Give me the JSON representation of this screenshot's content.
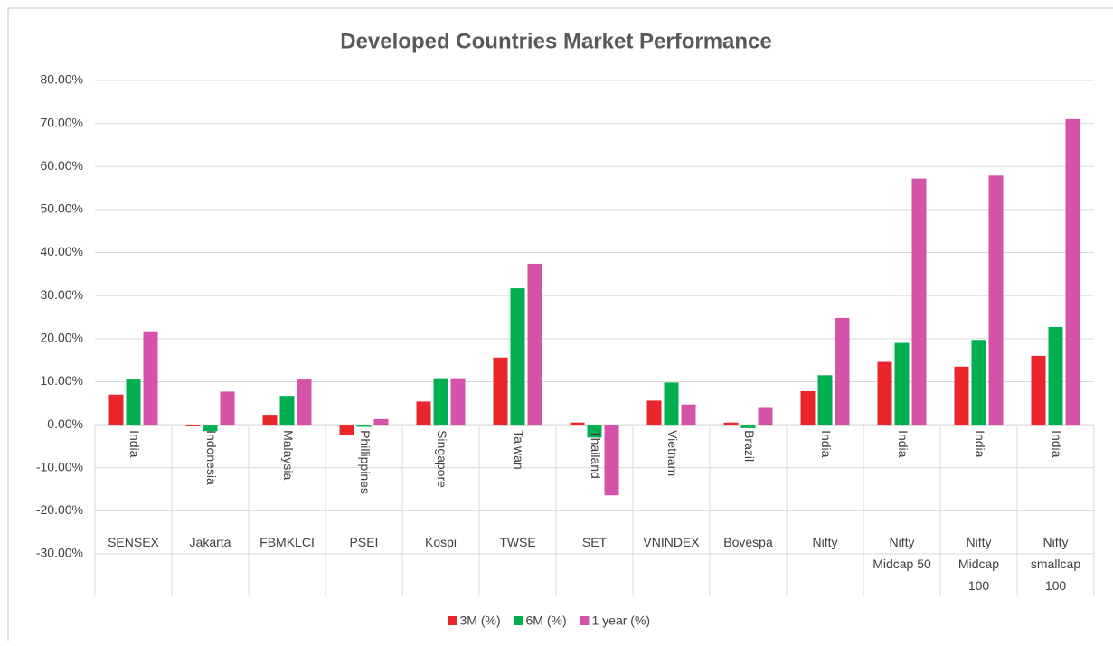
{
  "chart_data": {
    "type": "bar",
    "title": "Developed Countries Market Performance",
    "categories": [
      "SENSEX",
      "Jakarta",
      "FBMKLCI",
      "PSEI",
      "Kospi",
      "TWSE",
      "SET",
      "VNINDEX",
      "Bovespa",
      "Nifty",
      "Nifty Midcap 50",
      "Nifty Midcap 100",
      "Nifty smallcap 100"
    ],
    "category_groups": [
      "India",
      "Indonesia",
      "Malaysia",
      "Phillippines",
      "Singapore",
      "Taiwan",
      "Thailand",
      "Vietnam",
      "Brazil",
      "India",
      "India",
      "India",
      "India"
    ],
    "series": [
      {
        "name": "3M (%)",
        "color": "#e8262b",
        "values": [
          7.0,
          -0.4,
          2.3,
          -2.5,
          5.4,
          15.6,
          0.5,
          5.6,
          0.5,
          7.8,
          14.6,
          13.5,
          16.0
        ]
      },
      {
        "name": "6M (%)",
        "color": "#00b050",
        "values": [
          10.5,
          -1.5,
          6.7,
          -0.5,
          10.8,
          31.7,
          -3.0,
          9.8,
          -0.8,
          11.5,
          19.0,
          19.7,
          22.7
        ]
      },
      {
        "name": "1 year (%)",
        "color": "#d452a8",
        "values": [
          21.7,
          7.7,
          10.5,
          1.3,
          10.8,
          37.4,
          -16.4,
          4.7,
          3.9,
          24.8,
          57.2,
          57.9,
          71.0
        ]
      }
    ],
    "ylim": [
      -30,
      80
    ],
    "yticks": [
      {
        "value": -30,
        "label": "-30.00%"
      },
      {
        "value": -20,
        "label": "-20.00%"
      },
      {
        "value": -10,
        "label": "-10.00%"
      },
      {
        "value": 0,
        "label": "0.00%"
      },
      {
        "value": 10,
        "label": "10.00%"
      },
      {
        "value": 20,
        "label": "20.00%"
      },
      {
        "value": 30,
        "label": "30.00%"
      },
      {
        "value": 40,
        "label": "40.00%"
      },
      {
        "value": 50,
        "label": "50.00%"
      },
      {
        "value": 60,
        "label": "60.00%"
      },
      {
        "value": 70,
        "label": "70.00%"
      },
      {
        "value": 80,
        "label": "80.00%"
      }
    ],
    "grid": true,
    "legend": "bottom"
  }
}
